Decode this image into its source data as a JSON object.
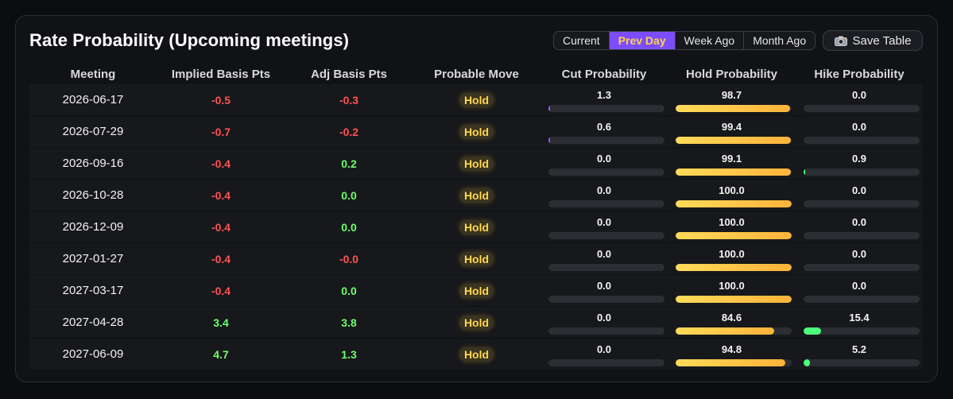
{
  "header": {
    "title": "Rate Probability (Upcoming meetings)",
    "range_options": [
      "Current",
      "Prev Day",
      "Week Ago",
      "Month Ago"
    ],
    "active_range": "Prev Day",
    "save_label": "Save Table",
    "save_icon": "camera-icon"
  },
  "colors": {
    "negative": "#ff5252",
    "positive": "#6cff6c",
    "cut_bar": "#b44dff",
    "hold_bar": "#ffc84a",
    "hike_bar": "#4dff7a",
    "active_tab": "#7c4dff"
  },
  "table": {
    "columns": [
      "Meeting",
      "Implied Basis Pts",
      "Adj Basis Pts",
      "Probable Move",
      "Cut Probability",
      "Hold Probability",
      "Hike Probability"
    ],
    "rows": [
      {
        "meeting": "2026-06-17",
        "implied": "-0.5",
        "adj": "-0.3",
        "move": "Hold",
        "cut": "1.3",
        "hold": "98.7",
        "hike": "0.0"
      },
      {
        "meeting": "2026-07-29",
        "implied": "-0.7",
        "adj": "-0.2",
        "move": "Hold",
        "cut": "0.6",
        "hold": "99.4",
        "hike": "0.0"
      },
      {
        "meeting": "2026-09-16",
        "implied": "-0.4",
        "adj": "0.2",
        "move": "Hold",
        "cut": "0.0",
        "hold": "99.1",
        "hike": "0.9"
      },
      {
        "meeting": "2026-10-28",
        "implied": "-0.4",
        "adj": "0.0",
        "move": "Hold",
        "cut": "0.0",
        "hold": "100.0",
        "hike": "0.0"
      },
      {
        "meeting": "2026-12-09",
        "implied": "-0.4",
        "adj": "0.0",
        "move": "Hold",
        "cut": "0.0",
        "hold": "100.0",
        "hike": "0.0"
      },
      {
        "meeting": "2027-01-27",
        "implied": "-0.4",
        "adj": "-0.0",
        "move": "Hold",
        "cut": "0.0",
        "hold": "100.0",
        "hike": "0.0"
      },
      {
        "meeting": "2027-03-17",
        "implied": "-0.4",
        "adj": "0.0",
        "move": "Hold",
        "cut": "0.0",
        "hold": "100.0",
        "hike": "0.0"
      },
      {
        "meeting": "2027-04-28",
        "implied": "3.4",
        "adj": "3.8",
        "move": "Hold",
        "cut": "0.0",
        "hold": "84.6",
        "hike": "15.4"
      },
      {
        "meeting": "2027-06-09",
        "implied": "4.7",
        "adj": "1.3",
        "move": "Hold",
        "cut": "0.0",
        "hold": "94.8",
        "hike": "5.2"
      }
    ]
  }
}
